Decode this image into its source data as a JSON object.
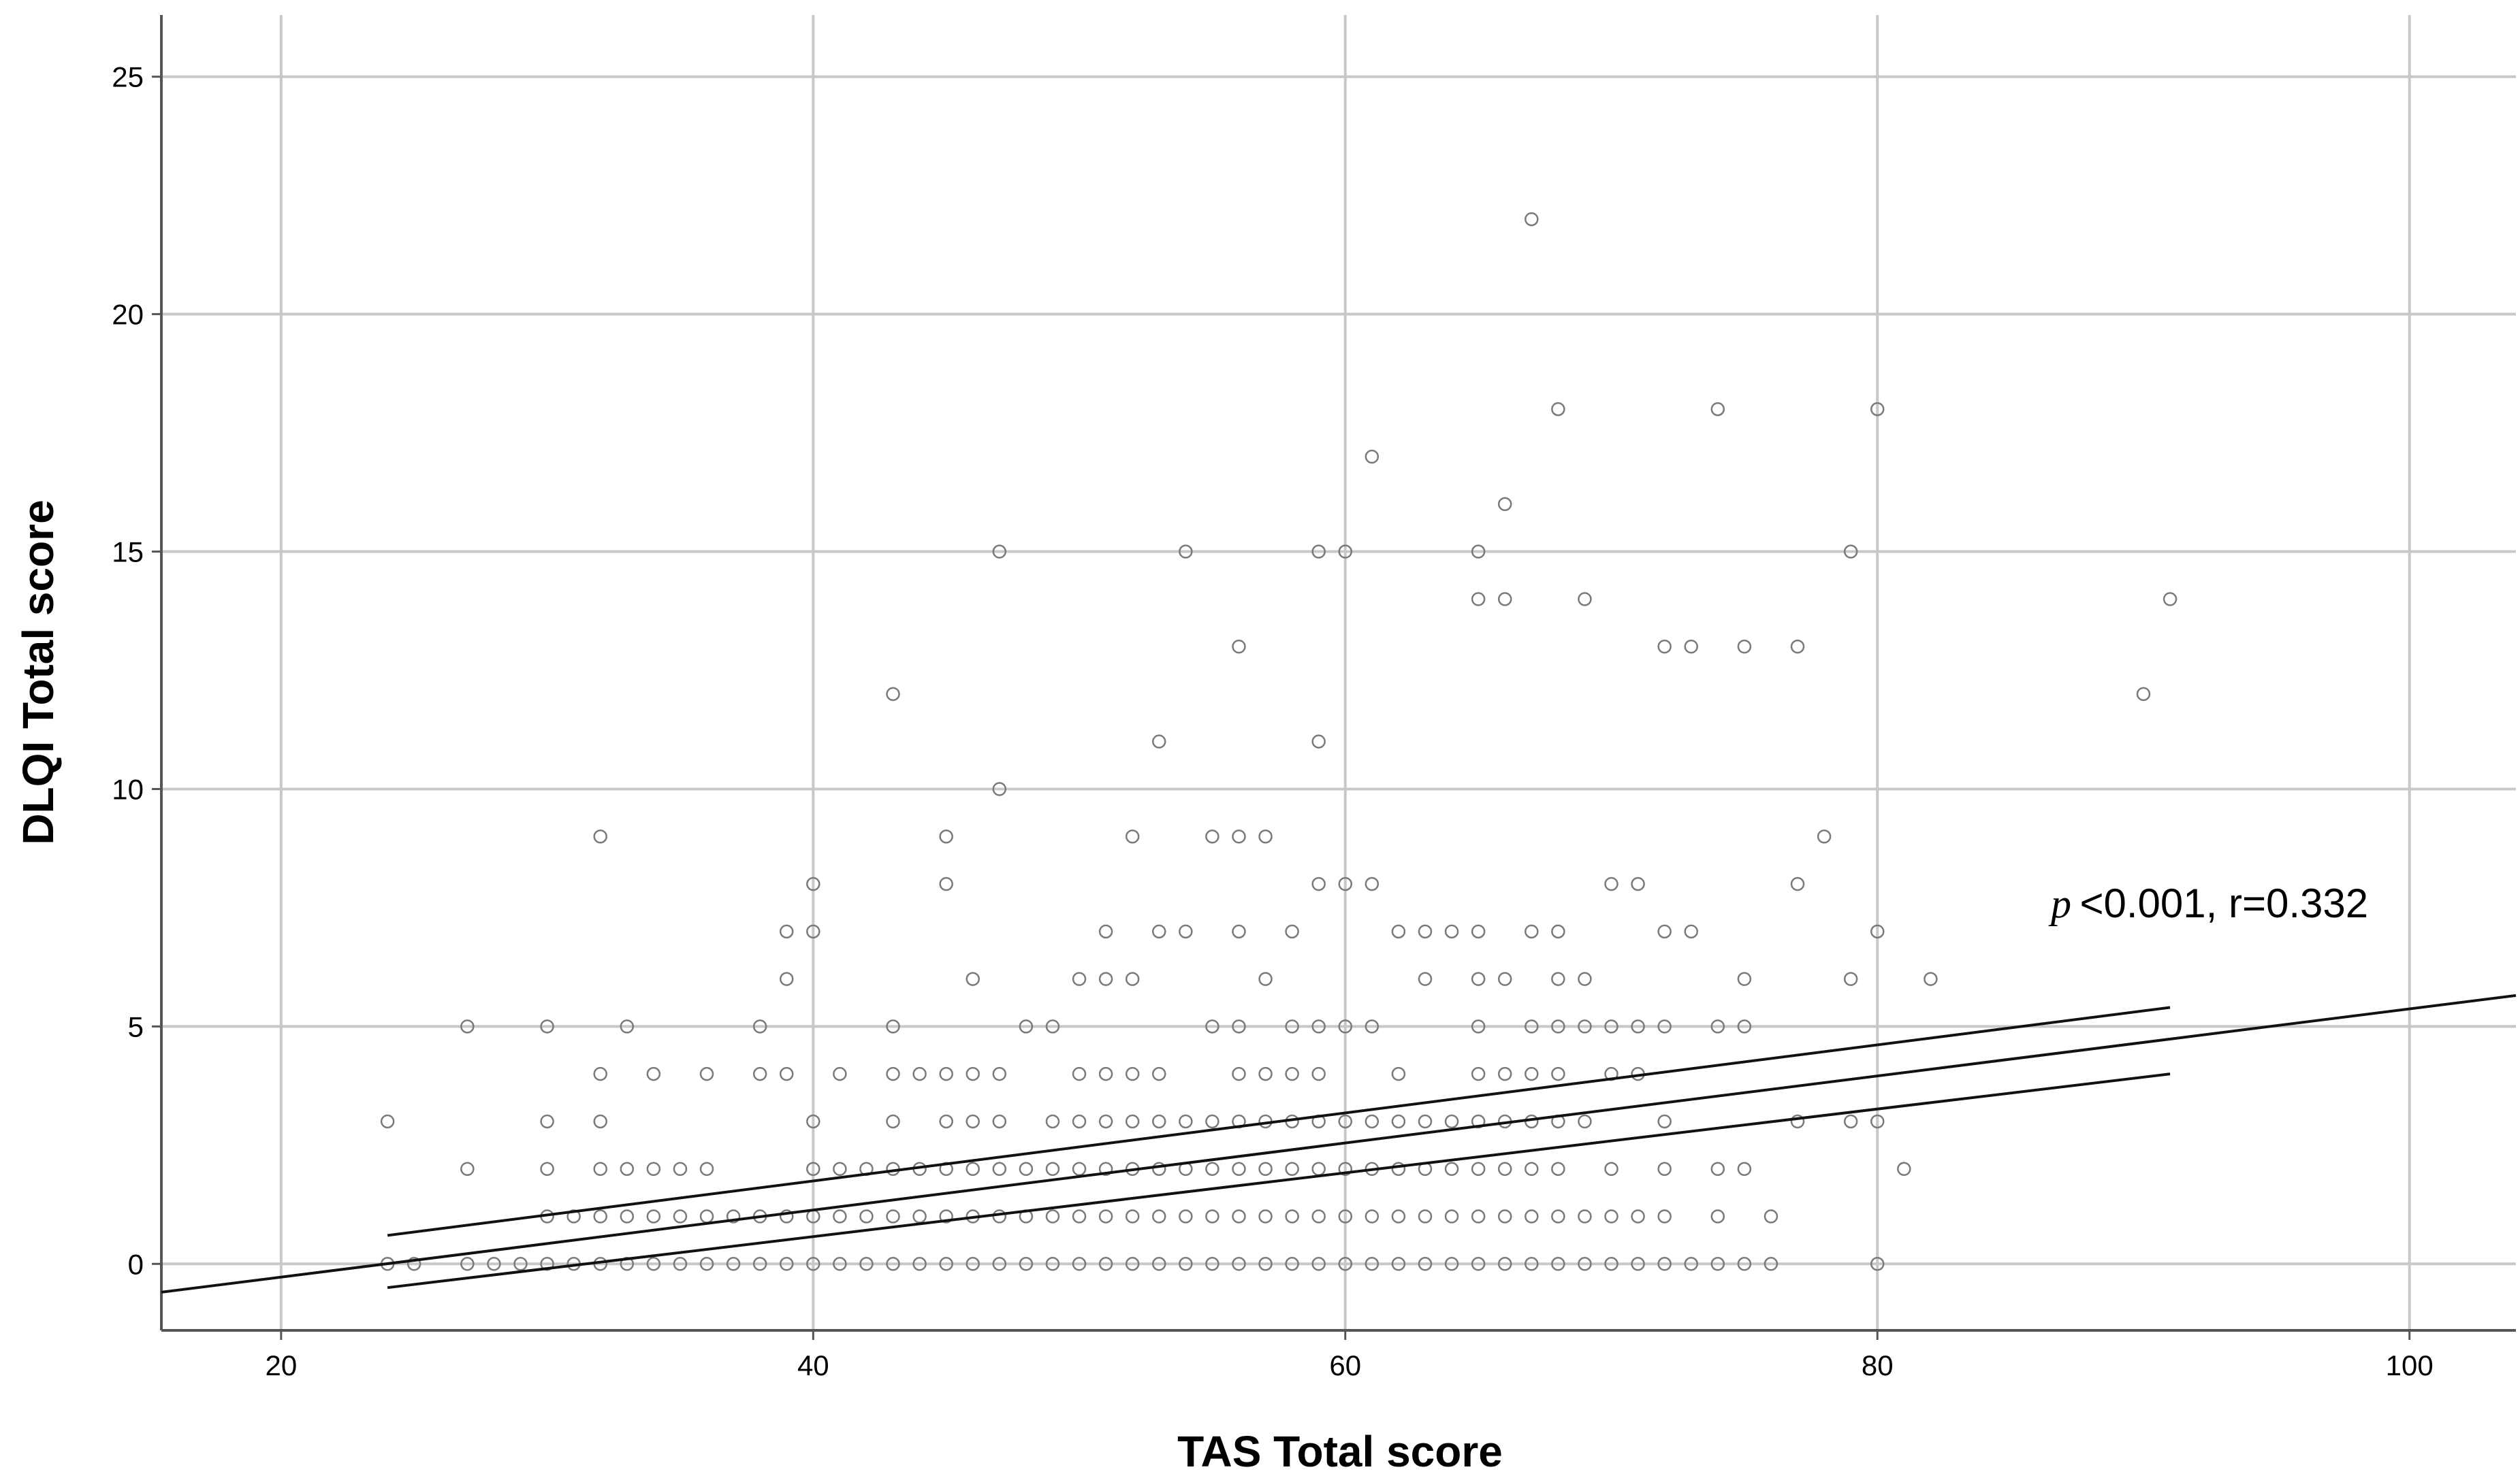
{
  "chart_data": {
    "type": "scatter",
    "title": "",
    "xlabel": "TAS Total score",
    "ylabel": "DLQI Total score",
    "xlim": [
      15.5,
      104
    ],
    "ylim": [
      -1.4,
      26.3
    ],
    "xticks": [
      20,
      40,
      60,
      80,
      100
    ],
    "yticks": [
      0,
      5,
      10,
      15,
      20,
      25
    ],
    "grid": true,
    "annotation": {
      "p_symbol": "p",
      "text": "<0.001, r=0.332"
    },
    "fit_line": {
      "slope": 0.0706,
      "intercept": -1.69
    },
    "confidence_band": {
      "x": [
        24,
        91
      ],
      "upper": [
        0.6,
        5.4
      ],
      "lower": [
        -0.5,
        4.0
      ]
    },
    "points": [
      [
        24,
        3
      ],
      [
        24,
        0
      ],
      [
        25,
        0
      ],
      [
        27,
        5
      ],
      [
        27,
        2
      ],
      [
        27,
        0
      ],
      [
        28,
        0
      ],
      [
        29,
        0
      ],
      [
        30,
        5
      ],
      [
        30,
        3
      ],
      [
        30,
        2
      ],
      [
        30,
        1
      ],
      [
        30,
        0
      ],
      [
        31,
        1
      ],
      [
        31,
        0
      ],
      [
        32,
        9
      ],
      [
        32,
        4
      ],
      [
        32,
        3
      ],
      [
        32,
        2
      ],
      [
        32,
        1
      ],
      [
        32,
        0
      ],
      [
        33,
        5
      ],
      [
        33,
        2
      ],
      [
        33,
        1
      ],
      [
        33,
        0
      ],
      [
        34,
        4
      ],
      [
        34,
        2
      ],
      [
        34,
        1
      ],
      [
        34,
        0
      ],
      [
        35,
        2
      ],
      [
        35,
        1
      ],
      [
        35,
        0
      ],
      [
        36,
        4
      ],
      [
        36,
        2
      ],
      [
        36,
        1
      ],
      [
        36,
        0
      ],
      [
        37,
        1
      ],
      [
        37,
        0
      ],
      [
        38,
        5
      ],
      [
        38,
        4
      ],
      [
        38,
        1
      ],
      [
        38,
        0
      ],
      [
        39,
        7
      ],
      [
        39,
        6
      ],
      [
        39,
        4
      ],
      [
        39,
        1
      ],
      [
        39,
        0
      ],
      [
        40,
        8
      ],
      [
        40,
        7
      ],
      [
        40,
        3
      ],
      [
        40,
        2
      ],
      [
        40,
        1
      ],
      [
        40,
        0
      ],
      [
        41,
        4
      ],
      [
        41,
        2
      ],
      [
        41,
        1
      ],
      [
        41,
        0
      ],
      [
        42,
        2
      ],
      [
        42,
        1
      ],
      [
        42,
        0
      ],
      [
        43,
        12
      ],
      [
        43,
        5
      ],
      [
        43,
        4
      ],
      [
        43,
        3
      ],
      [
        43,
        2
      ],
      [
        43,
        1
      ],
      [
        43,
        0
      ],
      [
        44,
        4
      ],
      [
        44,
        2
      ],
      [
        44,
        1
      ],
      [
        44,
        0
      ],
      [
        45,
        9
      ],
      [
        45,
        8
      ],
      [
        45,
        4
      ],
      [
        45,
        3
      ],
      [
        45,
        2
      ],
      [
        45,
        1
      ],
      [
        45,
        0
      ],
      [
        46,
        6
      ],
      [
        46,
        4
      ],
      [
        46,
        3
      ],
      [
        46,
        2
      ],
      [
        46,
        1
      ],
      [
        46,
        0
      ],
      [
        47,
        15
      ],
      [
        47,
        10
      ],
      [
        47,
        4
      ],
      [
        47,
        3
      ],
      [
        47,
        2
      ],
      [
        47,
        1
      ],
      [
        47,
        0
      ],
      [
        48,
        5
      ],
      [
        48,
        2
      ],
      [
        48,
        1
      ],
      [
        48,
        0
      ],
      [
        49,
        5
      ],
      [
        49,
        3
      ],
      [
        49,
        2
      ],
      [
        49,
        1
      ],
      [
        49,
        0
      ],
      [
        50,
        6
      ],
      [
        50,
        4
      ],
      [
        50,
        3
      ],
      [
        50,
        2
      ],
      [
        50,
        1
      ],
      [
        50,
        0
      ],
      [
        51,
        7
      ],
      [
        51,
        6
      ],
      [
        51,
        4
      ],
      [
        51,
        3
      ],
      [
        51,
        2
      ],
      [
        51,
        1
      ],
      [
        51,
        0
      ],
      [
        52,
        9
      ],
      [
        52,
        6
      ],
      [
        52,
        4
      ],
      [
        52,
        3
      ],
      [
        52,
        2
      ],
      [
        52,
        1
      ],
      [
        52,
        0
      ],
      [
        53,
        11
      ],
      [
        53,
        7
      ],
      [
        53,
        4
      ],
      [
        53,
        3
      ],
      [
        53,
        2
      ],
      [
        53,
        1
      ],
      [
        53,
        0
      ],
      [
        54,
        15
      ],
      [
        54,
        7
      ],
      [
        54,
        3
      ],
      [
        54,
        2
      ],
      [
        54,
        1
      ],
      [
        54,
        0
      ],
      [
        55,
        9
      ],
      [
        55,
        5
      ],
      [
        55,
        3
      ],
      [
        55,
        2
      ],
      [
        55,
        1
      ],
      [
        55,
        0
      ],
      [
        56,
        13
      ],
      [
        56,
        9
      ],
      [
        56,
        7
      ],
      [
        56,
        5
      ],
      [
        56,
        4
      ],
      [
        56,
        3
      ],
      [
        56,
        2
      ],
      [
        56,
        1
      ],
      [
        56,
        0
      ],
      [
        57,
        9
      ],
      [
        57,
        6
      ],
      [
        57,
        4
      ],
      [
        57,
        3
      ],
      [
        57,
        2
      ],
      [
        57,
        1
      ],
      [
        57,
        0
      ],
      [
        58,
        7
      ],
      [
        58,
        5
      ],
      [
        58,
        4
      ],
      [
        58,
        3
      ],
      [
        58,
        2
      ],
      [
        58,
        1
      ],
      [
        58,
        0
      ],
      [
        59,
        15
      ],
      [
        59,
        11
      ],
      [
        59,
        8
      ],
      [
        59,
        5
      ],
      [
        59,
        4
      ],
      [
        59,
        3
      ],
      [
        59,
        2
      ],
      [
        59,
        1
      ],
      [
        59,
        0
      ],
      [
        60,
        15
      ],
      [
        60,
        8
      ],
      [
        60,
        5
      ],
      [
        60,
        3
      ],
      [
        60,
        2
      ],
      [
        60,
        1
      ],
      [
        60,
        0
      ],
      [
        61,
        17
      ],
      [
        61,
        8
      ],
      [
        61,
        5
      ],
      [
        61,
        3
      ],
      [
        61,
        2
      ],
      [
        61,
        1
      ],
      [
        61,
        0
      ],
      [
        62,
        7
      ],
      [
        62,
        4
      ],
      [
        62,
        3
      ],
      [
        62,
        2
      ],
      [
        62,
        1
      ],
      [
        62,
        0
      ],
      [
        63,
        7
      ],
      [
        63,
        6
      ],
      [
        63,
        3
      ],
      [
        63,
        2
      ],
      [
        63,
        1
      ],
      [
        63,
        0
      ],
      [
        64,
        7
      ],
      [
        64,
        3
      ],
      [
        64,
        2
      ],
      [
        64,
        1
      ],
      [
        64,
        0
      ],
      [
        65,
        15
      ],
      [
        65,
        14
      ],
      [
        65,
        7
      ],
      [
        65,
        6
      ],
      [
        65,
        5
      ],
      [
        65,
        4
      ],
      [
        65,
        3
      ],
      [
        65,
        2
      ],
      [
        65,
        1
      ],
      [
        65,
        0
      ],
      [
        66,
        16
      ],
      [
        66,
        14
      ],
      [
        66,
        6
      ],
      [
        66,
        4
      ],
      [
        66,
        3
      ],
      [
        66,
        2
      ],
      [
        66,
        1
      ],
      [
        66,
        0
      ],
      [
        67,
        22
      ],
      [
        67,
        7
      ],
      [
        67,
        5
      ],
      [
        67,
        4
      ],
      [
        67,
        3
      ],
      [
        67,
        2
      ],
      [
        67,
        1
      ],
      [
        67,
        0
      ],
      [
        68,
        18
      ],
      [
        68,
        7
      ],
      [
        68,
        6
      ],
      [
        68,
        5
      ],
      [
        68,
        4
      ],
      [
        68,
        3
      ],
      [
        68,
        2
      ],
      [
        68,
        1
      ],
      [
        68,
        0
      ],
      [
        69,
        14
      ],
      [
        69,
        6
      ],
      [
        69,
        5
      ],
      [
        69,
        3
      ],
      [
        69,
        1
      ],
      [
        69,
        0
      ],
      [
        70,
        8
      ],
      [
        70,
        5
      ],
      [
        70,
        4
      ],
      [
        70,
        2
      ],
      [
        70,
        1
      ],
      [
        70,
        0
      ],
      [
        71,
        8
      ],
      [
        71,
        5
      ],
      [
        71,
        4
      ],
      [
        71,
        1
      ],
      [
        71,
        0
      ],
      [
        72,
        13
      ],
      [
        72,
        7
      ],
      [
        72,
        5
      ],
      [
        72,
        3
      ],
      [
        72,
        2
      ],
      [
        72,
        1
      ],
      [
        72,
        0
      ],
      [
        73,
        13
      ],
      [
        73,
        7
      ],
      [
        73,
        0
      ],
      [
        74,
        18
      ],
      [
        74,
        5
      ],
      [
        74,
        2
      ],
      [
        74,
        1
      ],
      [
        74,
        0
      ],
      [
        75,
        13
      ],
      [
        75,
        6
      ],
      [
        75,
        5
      ],
      [
        75,
        2
      ],
      [
        75,
        0
      ],
      [
        76,
        1
      ],
      [
        76,
        0
      ],
      [
        77,
        13
      ],
      [
        77,
        8
      ],
      [
        77,
        3
      ],
      [
        78,
        9
      ],
      [
        79,
        15
      ],
      [
        79,
        6
      ],
      [
        79,
        3
      ],
      [
        80,
        18
      ],
      [
        80,
        7
      ],
      [
        80,
        3
      ],
      [
        80,
        0
      ],
      [
        81,
        2
      ],
      [
        82,
        6
      ],
      [
        90,
        12
      ],
      [
        91,
        14
      ]
    ]
  }
}
